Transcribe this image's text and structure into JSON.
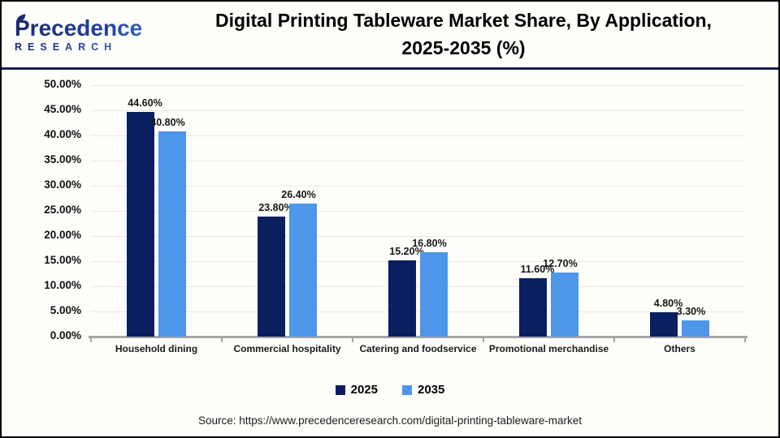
{
  "header": {
    "logo": {
      "brand": "Precedence",
      "sub": "RESEARCH"
    },
    "title_line1": "Digital Printing Tableware Market Share, By Application,",
    "title_line2": "2025-2035 (%)"
  },
  "chart_data": {
    "type": "bar",
    "title": "Digital Printing Tableware Market Share, By Application, 2025-2035 (%)",
    "categories": [
      "Household dining",
      "Commercial hospitality",
      "Catering and foodservice",
      "Promotional merchandise",
      "Others"
    ],
    "series": [
      {
        "name": "2025",
        "color": "#0b1f60",
        "values": [
          44.6,
          23.8,
          15.2,
          11.6,
          4.8
        ]
      },
      {
        "name": "2035",
        "color": "#4e96e9",
        "values": [
          40.8,
          26.4,
          16.8,
          12.7,
          3.3
        ]
      }
    ],
    "value_labels": [
      [
        "44.60%",
        "23.80%",
        "15.20%",
        "11.60%",
        "4.80%"
      ],
      [
        "40.80%",
        "26.40%",
        "16.80%",
        "12.70%",
        "3.30%"
      ]
    ],
    "xlabel": "",
    "ylabel": "",
    "ylim": [
      0,
      50
    ],
    "ytick_step": 5,
    "ytick_labels": [
      "0.00%",
      "5.00%",
      "10.00%",
      "15.00%",
      "20.00%",
      "25.00%",
      "30.00%",
      "35.00%",
      "40.00%",
      "45.00%",
      "50.00%"
    ],
    "grid": true,
    "legend_position": "bottom"
  },
  "footer": {
    "source": "Source: https://www.precedenceresearch.com/digital-printing-tableware-market"
  },
  "colors": {
    "series_2025": "#0b1f60",
    "series_2035": "#4e96e9",
    "header_divider": "#18214f",
    "axis_line": "#a6a6a6",
    "gridline": "#eae8e4",
    "frame_border": "#000000"
  }
}
